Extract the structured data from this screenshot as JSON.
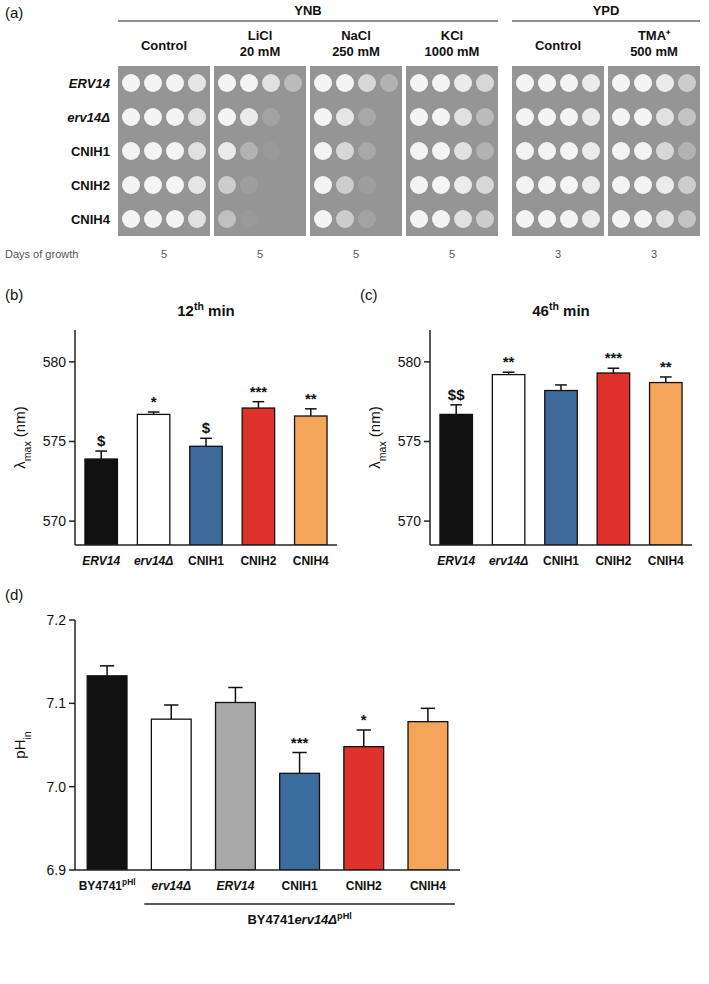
{
  "chart_data": [
    {
      "type": "spot_assay",
      "panel_label": "(a)",
      "rows": [
        "ERV14",
        "erv14Δ",
        "CNIH1",
        "CNIH2",
        "CNIH4"
      ],
      "days_label": "Days of growth",
      "groups": [
        {
          "label": "YNB",
          "panels": [
            {
              "condition": "Control",
              "days": 5,
              "growth": [
                [
                  1,
                  1,
                  1,
                  0.85
                ],
                [
                  1,
                  1,
                  1,
                  0.8
                ],
                [
                  1,
                  1,
                  1,
                  0.8
                ],
                [
                  1,
                  1,
                  1,
                  0.85
                ],
                [
                  1,
                  1,
                  1,
                  0.8
                ]
              ]
            },
            {
              "condition": "LiCl 20 mM",
              "days": 5,
              "growth": [
                [
                  1,
                  1,
                  0.8,
                  0.4
                ],
                [
                  1,
                  0.9,
                  0.15,
                  0
                ],
                [
                  0.9,
                  0.3,
                  0.05,
                  0
                ],
                [
                  0.6,
                  0.1,
                  0,
                  0
                ],
                [
                  0.45,
                  0.05,
                  0,
                  0
                ]
              ]
            },
            {
              "condition": "NaCl 250 mM",
              "days": 5,
              "growth": [
                [
                  1,
                  1,
                  0.7,
                  0.3
                ],
                [
                  1,
                  0.85,
                  0.2,
                  0
                ],
                [
                  1,
                  0.7,
                  0.2,
                  0
                ],
                [
                  1,
                  0.6,
                  0.1,
                  0
                ],
                [
                  1,
                  0.6,
                  0.15,
                  0
                ]
              ]
            },
            {
              "condition": "KCl 1000 mM",
              "days": 5,
              "growth": [
                [
                  1,
                  1,
                  0.9,
                  0.7
                ],
                [
                  1,
                  1,
                  0.8,
                  0.4
                ],
                [
                  1,
                  1,
                  0.8,
                  0.3
                ],
                [
                  1,
                  1,
                  0.9,
                  0.7
                ],
                [
                  1,
                  1,
                  0.8,
                  0.6
                ]
              ]
            }
          ]
        },
        {
          "label": "YPD",
          "panels": [
            {
              "condition": "Control",
              "days": 3,
              "growth": [
                [
                  1,
                  1,
                  1,
                  0.9
                ],
                [
                  1,
                  1,
                  1,
                  0.9
                ],
                [
                  1,
                  1,
                  1,
                  0.9
                ],
                [
                  1,
                  1,
                  1,
                  0.9
                ],
                [
                  1,
                  1,
                  1,
                  0.9
                ]
              ]
            },
            {
              "condition": "TMA⁺ 500 mM",
              "days": 3,
              "growth": [
                [
                  1,
                  1,
                  0.9,
                  0.6
                ],
                [
                  1,
                  1,
                  0.8,
                  0.5
                ],
                [
                  1,
                  1,
                  0.7,
                  0.3
                ],
                [
                  1,
                  1,
                  0.9,
                  0.6
                ],
                [
                  1,
                  1,
                  0.8,
                  0.5
                ]
              ]
            }
          ]
        }
      ]
    },
    {
      "type": "bar",
      "panel_label": "(b)",
      "title": "12th min",
      "y_label": "λmax (nm)",
      "categories": [
        "ERV14",
        "erv14Δ",
        "CNIH1",
        "CNIH2",
        "CNIH4"
      ],
      "values": [
        573.9,
        576.7,
        574.7,
        577.1,
        576.6
      ],
      "errors": [
        0.5,
        0.15,
        0.5,
        0.4,
        0.45
      ],
      "annotations": [
        "$",
        "*",
        "$",
        "***",
        "**"
      ],
      "colors": [
        "#111111",
        "#ffffff",
        "#3d6a9a",
        "#e0312a",
        "#f5a55a"
      ],
      "ylim": [
        568.5,
        582
      ],
      "yticks": [
        570,
        575,
        580
      ]
    },
    {
      "type": "bar",
      "panel_label": "(c)",
      "title": "46th min",
      "y_label": "λmax (nm)",
      "categories": [
        "ERV14",
        "erv14Δ",
        "CNIH1",
        "CNIH2",
        "CNIH4"
      ],
      "values": [
        576.7,
        579.2,
        578.2,
        579.3,
        578.7
      ],
      "errors": [
        0.6,
        0.15,
        0.35,
        0.3,
        0.35
      ],
      "annotations": [
        "$$",
        "**",
        null,
        "***",
        "**"
      ],
      "colors": [
        "#111111",
        "#ffffff",
        "#3d6a9a",
        "#e0312a",
        "#f5a55a"
      ],
      "ylim": [
        568.5,
        582
      ],
      "yticks": [
        570,
        575,
        580
      ]
    },
    {
      "type": "bar",
      "panel_label": "(d)",
      "y_label": "pHin",
      "categories": [
        "BY4741pHl",
        "erv14Δ",
        "ERV14",
        "CNIH1",
        "CNIH2",
        "CNIH4"
      ],
      "values": [
        7.133,
        7.081,
        7.101,
        7.016,
        7.048,
        7.078
      ],
      "errors": [
        0.012,
        0.017,
        0.018,
        0.025,
        0.02,
        0.016
      ],
      "annotations": [
        null,
        null,
        null,
        "***",
        "*",
        null
      ],
      "colors": [
        "#111111",
        "#ffffff",
        "#a8a8a8",
        "#3a6d9e",
        "#e0312a",
        "#f5a55a"
      ],
      "group": {
        "label": "BY4741erv14ΔpHl",
        "from": 1,
        "to": 5
      },
      "ylim": [
        6.9,
        7.2
      ],
      "yticks": [
        6.9,
        {
          "value": 7,
          "label": "7.0"
        },
        7.1,
        7.2
      ]
    }
  ]
}
